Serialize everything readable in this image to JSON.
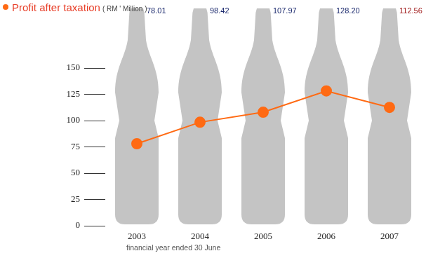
{
  "chart_data": {
    "type": "line",
    "title": "Profit after taxation",
    "subtitle": "( RM ' Million )",
    "categories": [
      "2003",
      "2004",
      "2005",
      "2006",
      "2007"
    ],
    "values": [
      78.01,
      98.42,
      107.97,
      128.2,
      112.56
    ],
    "value_labels": [
      "78.01",
      "98.42",
      "107.97",
      "128.20",
      "112.56"
    ],
    "data_labels": true,
    "color": "#ff6a13",
    "marker": "circle",
    "ylim": [
      0,
      150
    ],
    "yticks": [
      0,
      25,
      50,
      75,
      100,
      125,
      150
    ],
    "grid": false,
    "annotations": [
      "financial year ended 30 June"
    ]
  }
}
